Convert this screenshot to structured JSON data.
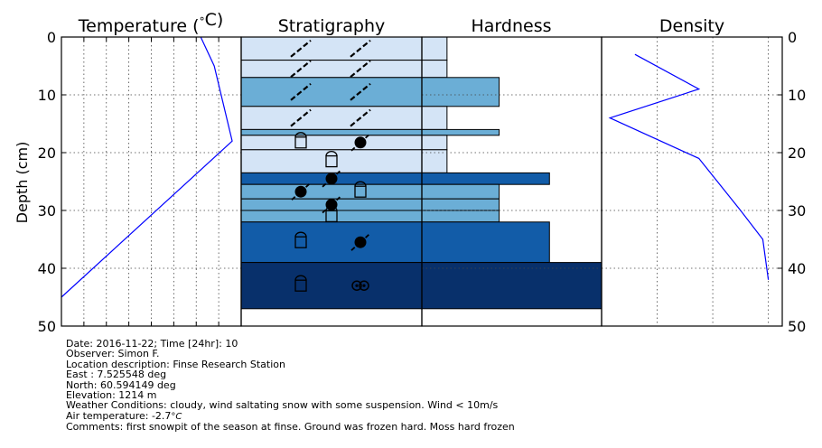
{
  "panels": {
    "temperature_title": "Temperature ($^\\circ$C)",
    "stratigraphy_title": "Stratigraphy",
    "hardness_title": "Hardness",
    "density_title": "Density",
    "ylabel": "Depth (cm)"
  },
  "info": {
    "line1": "Date: 2016-11-22; Time [24hr]: 10",
    "line2": "Observer: Simon F.",
    "line3": "Location description: Finse Research Station",
    "line4": "East : 7.525548 deg",
    "line5": "North: 60.594149 deg",
    "line6": "Elevation: 1214 m",
    "line7": "Weather Conditions: cloudy, wind saltating snow with some suspension. Wind < 10m/s",
    "line8": "Air temperature: -2.7$^\\circ C$",
    "line9": "Comments: first snowpit of the season at finse. Ground was frozen hard. Moss hard frozen"
  },
  "chart_data": {
    "type": "line",
    "yaxis": {
      "label": "Depth (cm)",
      "ticks": [
        "0",
        "10",
        "20",
        "30",
        "40",
        "50"
      ],
      "range": [
        0,
        50
      ],
      "inverted": true
    },
    "grid": true,
    "temperature": {
      "series": [
        {
          "depth": [
            0,
            5,
            18,
            45
          ],
          "value": [
            -0.4,
            -0.1,
            0.3,
            -3.5
          ]
        }
      ],
      "xlim": [
        -3.5,
        0.5
      ],
      "color": "#0000ff"
    },
    "density": {
      "series": [
        {
          "depth": [
            3,
            9,
            14,
            21,
            30,
            35,
            42
          ],
          "value": [
            120,
            350,
            30,
            350,
            500,
            580,
            600
          ]
        }
      ],
      "xlim": [
        0,
        650
      ],
      "color": "#0000ff"
    },
    "layers": [
      {
        "top": 0,
        "bottom": 4,
        "hardness": 0.14,
        "color": "#d4e4f6",
        "grains": [
          "df",
          "df"
        ]
      },
      {
        "top": 4,
        "bottom": 7,
        "hardness": 0.14,
        "color": "#d4e4f6",
        "grains": [
          "df",
          "df"
        ]
      },
      {
        "top": 7,
        "bottom": 12,
        "hardness": 0.43,
        "color": "#6baed6",
        "grains": [
          "df",
          "df"
        ]
      },
      {
        "top": 12,
        "bottom": 16,
        "hardness": 0.14,
        "color": "#d4e4f6",
        "grains": [
          "df",
          "df"
        ]
      },
      {
        "top": 16,
        "bottom": 17,
        "hardness": 0.43,
        "color": "#6baed6",
        "grains": []
      },
      {
        "top": 17,
        "bottom": 19.5,
        "hardness": 0.14,
        "color": "#d4e4f6",
        "grains": [
          "fc",
          "rg"
        ]
      },
      {
        "top": 19.5,
        "bottom": 23.5,
        "hardness": 0.14,
        "color": "#d4e4f6",
        "grains": [
          "fc"
        ]
      },
      {
        "top": 23.5,
        "bottom": 25.5,
        "hardness": 0.71,
        "color": "#125ca8",
        "grains": [
          "rg"
        ]
      },
      {
        "top": 25.5,
        "bottom": 28,
        "hardness": 0.43,
        "color": "#6baed6",
        "grains": [
          "rg",
          "fc"
        ]
      },
      {
        "top": 28,
        "bottom": 30,
        "hardness": 0.43,
        "color": "#6baed6",
        "grains": [
          "rg"
        ]
      },
      {
        "top": 30,
        "bottom": 32,
        "hardness": 0.43,
        "color": "#6baed6",
        "grains": [
          "fc"
        ]
      },
      {
        "top": 32,
        "bottom": 39,
        "hardness": 0.71,
        "color": "#125ca8",
        "grains": [
          "fc",
          "rg"
        ]
      },
      {
        "top": 39,
        "bottom": 47,
        "hardness": 1.0,
        "color": "#08306b",
        "grains": [
          "fc",
          "mf"
        ]
      }
    ]
  }
}
